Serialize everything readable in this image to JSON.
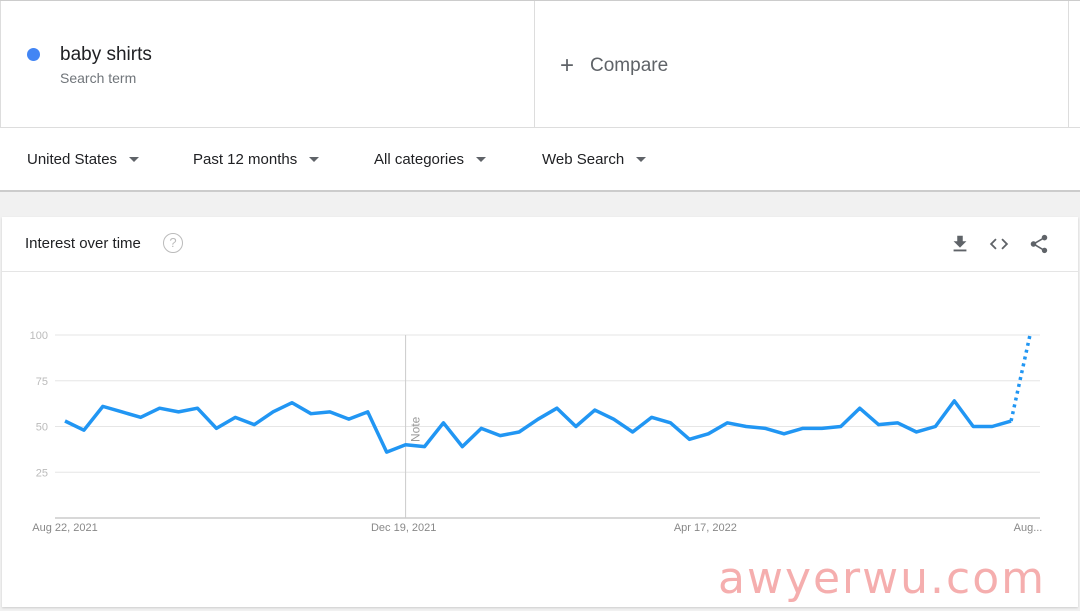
{
  "search_term": {
    "name": "baby shirts",
    "label": "Search term",
    "color": "#4285f4"
  },
  "compare": {
    "icon": "plus-icon",
    "label": "Compare"
  },
  "filters": [
    "United States",
    "Past 12 months",
    "All categories",
    "Web Search"
  ],
  "card": {
    "title": "Interest over time",
    "help_icon": "?",
    "icons": [
      "download-icon",
      "embed-icon",
      "share-icon"
    ]
  },
  "chart_data": {
    "type": "line",
    "title": "",
    "ylim": [
      0,
      100
    ],
    "yticks": [
      25,
      50,
      75,
      100
    ],
    "xtick_labels": [
      "Aug 22, 2021",
      "Dec 19, 2021",
      "Apr 17, 2022",
      "Aug..."
    ],
    "grid": true,
    "annotation": "Note",
    "line_color": "#2196f3",
    "last_segment_partial": true,
    "series": [
      {
        "values": [
          53,
          48,
          61,
          58,
          55,
          60,
          58,
          60,
          49,
          55,
          51,
          58,
          63,
          57,
          58,
          54,
          58,
          36,
          40,
          39,
          52,
          39,
          49,
          45,
          47,
          54,
          60,
          50,
          59,
          54,
          47,
          55,
          52,
          43,
          46,
          52,
          50,
          49,
          46,
          49,
          49,
          50,
          60,
          51,
          52,
          47,
          50,
          64,
          50,
          50,
          53,
          100
        ]
      }
    ]
  },
  "watermark": "awyerwu.com"
}
